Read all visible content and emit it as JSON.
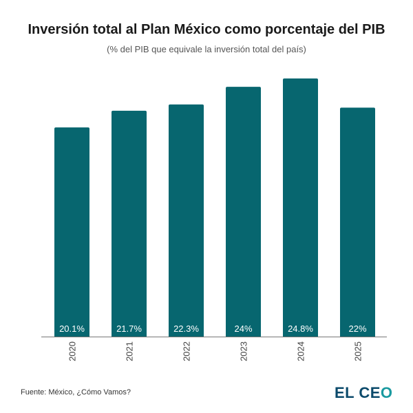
{
  "chart_data": {
    "type": "bar",
    "title": "Inversión total al Plan México como porcentaje del PIB",
    "subtitle": "(% del PIB que equivale la inversión total del país)",
    "xlabel": "",
    "ylabel": "",
    "categories": [
      "2020",
      "2021",
      "2022",
      "2023",
      "2024",
      "2025"
    ],
    "values": [
      20.1,
      21.7,
      22.3,
      24,
      24.8,
      22
    ],
    "labels": [
      "20.1%",
      "21.7%",
      "22.3%",
      "24%",
      "24.8%",
      "22%"
    ],
    "ylim": [
      0,
      24.8
    ],
    "grid": false,
    "bar_color": "#07666f",
    "label_color": "#ffffff"
  },
  "footer": {
    "source": "Fuente: México, ¿Cómo Vamos?",
    "logo_text_a": "EL CE",
    "logo_text_b": "O"
  }
}
